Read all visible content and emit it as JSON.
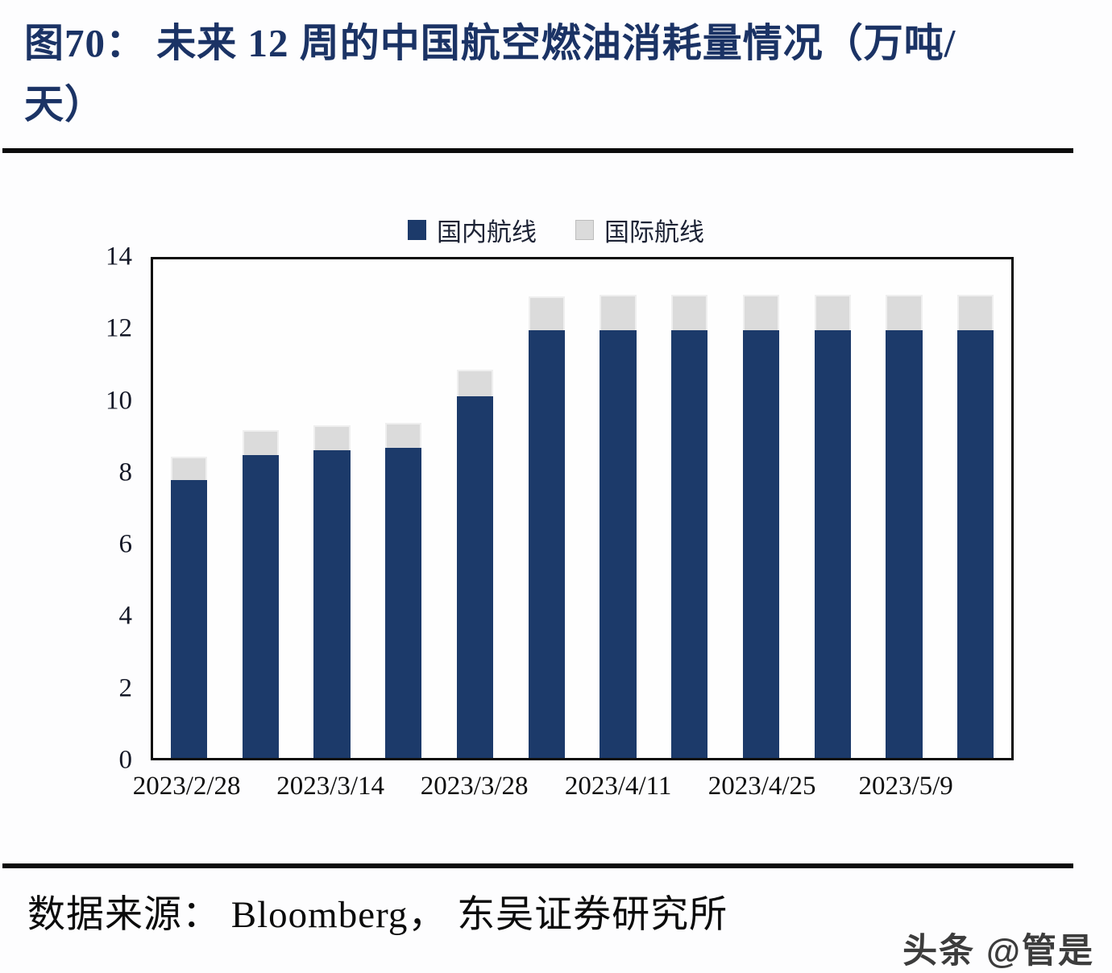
{
  "header": {
    "title_line1": "图70：  未来 12 周的中国航空燃油消耗量情况（万吨/",
    "title_line2": "天）"
  },
  "footer": {
    "source": "数据来源：  Bloomberg，  东吴证券研究所",
    "watermark": "头条 @管是"
  },
  "chart_data": {
    "type": "bar",
    "stacked": true,
    "title": "未来 12 周的中国航空燃油消耗量情况（万吨/天）",
    "unit": "万吨/天",
    "categories": [
      "2023/2/28",
      "",
      "2023/3/14",
      "",
      "2023/3/28",
      "",
      "2023/4/11",
      "",
      "2023/4/25",
      "",
      "2023/5/9",
      ""
    ],
    "series": [
      {
        "name": "国内航线",
        "color": "#1c3a6a",
        "swatch_border": "#1c3a6a",
        "values": [
          7.8,
          8.5,
          8.65,
          8.7,
          10.15,
          12.0,
          12.0,
          12.0,
          12.0,
          12.0,
          12.0,
          12.0
        ]
      },
      {
        "name": "国际航线",
        "color": "#dbdbdb",
        "swatch_border": "#bdbdbd",
        "values": [
          0.65,
          0.7,
          0.7,
          0.7,
          0.75,
          0.95,
          1.0,
          1.0,
          1.0,
          1.0,
          1.0,
          1.0
        ]
      }
    ],
    "totals": [
      8.45,
      9.2,
      9.35,
      9.4,
      10.9,
      12.95,
      13.0,
      13.0,
      13.0,
      13.0,
      13.0,
      13.0
    ],
    "ylim": [
      0,
      14
    ],
    "y_ticks": [
      14,
      12,
      10,
      8,
      6,
      4,
      2,
      0
    ],
    "xlabel": "",
    "ylabel": "",
    "grid": false,
    "legend_position": "top-center"
  }
}
